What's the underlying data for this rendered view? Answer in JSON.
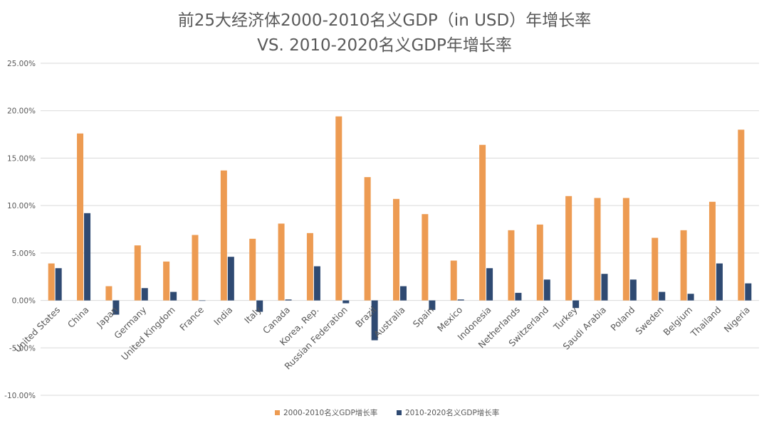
{
  "colors": {
    "series_2000_2010": "#ED9B52",
    "series_2010_2020": "#2F4A72",
    "gridline": "#D9D9D9",
    "text": "#595959"
  },
  "chart_data": {
    "type": "bar",
    "title": "前25大经济体2000-2010名义GDP（in USD）年增长率",
    "subtitle": "VS. 2010-2020名义GDP年增长率",
    "xlabel": "",
    "ylabel": "",
    "ylim": [
      -0.1,
      0.25
    ],
    "yticks": [
      -0.1,
      -0.05,
      0.0,
      0.05,
      0.1,
      0.15,
      0.2,
      0.25
    ],
    "ytick_labels": [
      "-10.00%",
      "-5.00%",
      "0.00%",
      "5.00%",
      "10.00%",
      "15.00%",
      "20.00%",
      "25.00%"
    ],
    "grid": true,
    "legend_position": "bottom",
    "categories": [
      "United States",
      "China",
      "Japan",
      "Germany",
      "United Kingdom",
      "France",
      "India",
      "Italy",
      "Canada",
      "Korea, Rep.",
      "Russian Federation",
      "Brazil",
      "Australia",
      "Spain",
      "Mexico",
      "Indonesia",
      "Netherlands",
      "Switzerland",
      "Turkey",
      "Saudi Arabia",
      "Poland",
      "Sweden",
      "Belgium",
      "Thailand",
      "Nigeria"
    ],
    "series": [
      {
        "name": "2000-2010名义GDP增长率",
        "values": [
          0.039,
          0.176,
          0.015,
          0.058,
          0.041,
          0.069,
          0.137,
          0.065,
          0.081,
          0.071,
          0.194,
          0.13,
          0.107,
          0.091,
          0.042,
          0.164,
          0.074,
          0.08,
          0.11,
          0.108,
          0.108,
          0.066,
          0.074,
          0.104,
          0.18
        ]
      },
      {
        "name": "2010-2020名义GDP增长率",
        "values": [
          0.034,
          0.092,
          -0.015,
          0.013,
          0.009,
          0.0,
          0.046,
          -0.012,
          0.001,
          0.036,
          -0.003,
          -0.042,
          0.015,
          -0.01,
          0.001,
          0.034,
          0.008,
          0.022,
          -0.008,
          0.028,
          0.022,
          0.009,
          0.007,
          0.039,
          0.018
        ]
      }
    ]
  }
}
